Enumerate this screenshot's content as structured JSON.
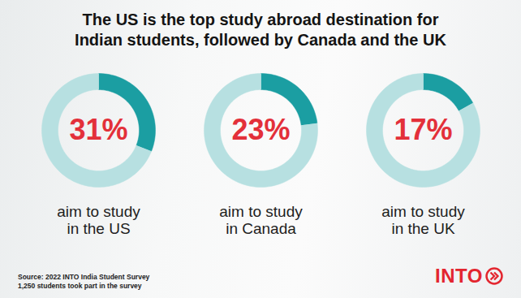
{
  "chart_data": {
    "type": "donut",
    "title": "The US is the top study abroad destination for\nIndian students, followed by Canada and the UK",
    "categories": [
      "aim to study\nin the US",
      "aim to study\nin Canada",
      "aim to study\nin the UK"
    ],
    "values": [
      31,
      23,
      17
    ],
    "value_labels": [
      "31%",
      "23%",
      "17%"
    ],
    "data_labels": true,
    "color": "#1b9ea2",
    "source": "Source: 2022 INTO India Student Survey\n1,250 students took part in the survey",
    "logo": "INTO"
  }
}
